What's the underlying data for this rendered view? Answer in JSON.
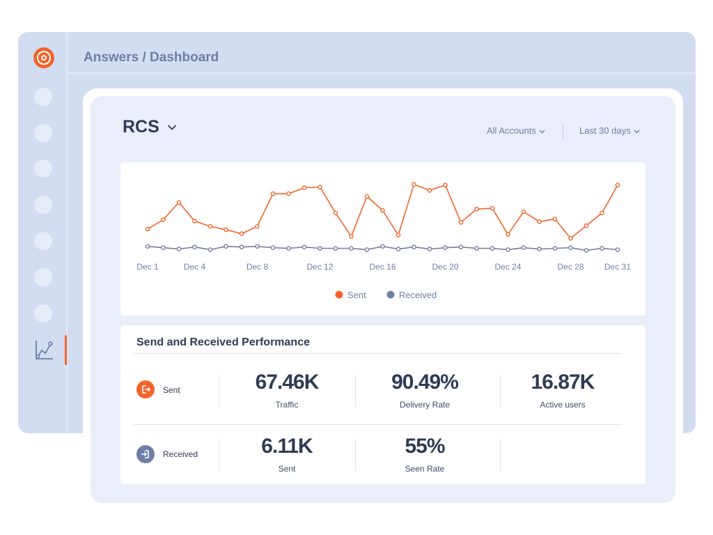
{
  "breadcrumb": "Answers / Dashboard",
  "page": {
    "title": "RCS",
    "filters": {
      "accounts": "All Accounts",
      "range": "Last 30 days"
    }
  },
  "colors": {
    "sent": "#f2642a",
    "received": "#6e7ea6",
    "accent": "#f2642a"
  },
  "chart_data": {
    "type": "line",
    "x": [
      "Dec 1",
      "Dec 2",
      "Dec 3",
      "Dec 4",
      "Dec 5",
      "Dec 6",
      "Dec 7",
      "Dec 8",
      "Dec 9",
      "Dec 10",
      "Dec 11",
      "Dec 12",
      "Dec 13",
      "Dec 14",
      "Dec 15",
      "Dec 16",
      "Dec 17",
      "Dec 18",
      "Dec 19",
      "Dec 20",
      "Dec 21",
      "Dec 22",
      "Dec 23",
      "Dec 24",
      "Dec 25",
      "Dec 26",
      "Dec 27",
      "Dec 28",
      "Dec 29",
      "Dec 30",
      "Dec 31"
    ],
    "tick_labels": [
      "Dec 1",
      "Dec 4",
      "Dec 8",
      "Dec 12",
      "Dec 16",
      "Dec 20",
      "Dec 24",
      "Dec 28",
      "Dec 31"
    ],
    "series": [
      {
        "name": "Sent",
        "values": [
          31,
          45,
          71,
          43,
          35,
          30,
          24,
          35,
          84,
          84,
          93,
          94,
          55,
          20,
          80,
          59,
          22,
          98,
          89,
          97,
          41,
          61,
          62,
          23,
          57,
          42,
          46,
          17,
          36,
          55,
          97
        ]
      },
      {
        "name": "Received",
        "values": [
          5,
          3,
          1,
          4,
          0,
          5,
          4,
          5,
          3,
          2,
          4,
          2,
          2,
          2,
          0,
          5,
          1,
          4,
          1,
          3,
          4,
          2,
          2,
          0,
          3,
          1,
          2,
          3,
          -1,
          2,
          0
        ]
      }
    ],
    "ylim": [
      -10,
      105
    ],
    "grid": false,
    "legend": "bottom-center"
  },
  "legend": {
    "sent": "Sent",
    "received": "Received"
  },
  "performance": {
    "title": "Send and Received Performance",
    "rows": [
      {
        "label": "Sent",
        "icon": "send-out-icon",
        "metrics": [
          {
            "value": "67.46K",
            "label": "Traffic"
          },
          {
            "value": "90.49%",
            "label": "Delivery Rate"
          },
          {
            "value": "16.87K",
            "label": "Active users"
          }
        ]
      },
      {
        "label": "Received",
        "icon": "send-in-icon",
        "metrics": [
          {
            "value": "6.11K",
            "label": "Sent"
          },
          {
            "value": "55%",
            "label": "Seen Rate"
          }
        ]
      }
    ]
  }
}
